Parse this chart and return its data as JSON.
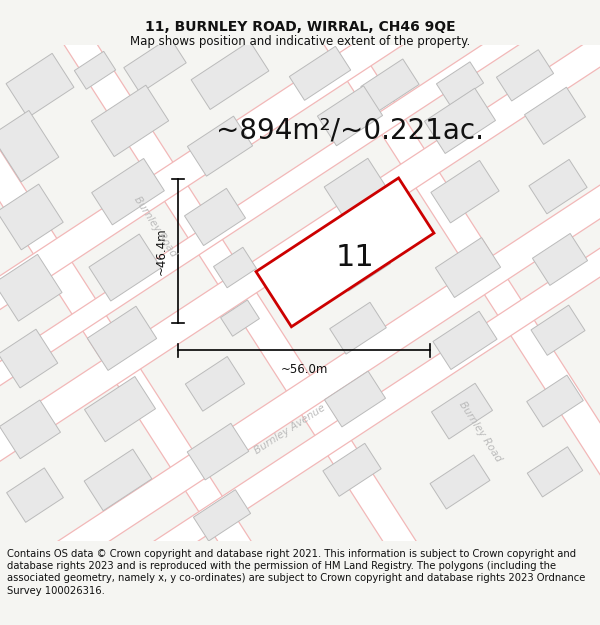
{
  "title_line1": "11, BURNLEY ROAD, WIRRAL, CH46 9QE",
  "title_line2": "Map shows position and indicative extent of the property.",
  "area_text": "~894m²/~0.221ac.",
  "plot_number": "11",
  "dim_width": "~56.0m",
  "dim_height": "~46.4m",
  "road_label1": "Burnley Road",
  "road_label2": "Burnley Avenue",
  "road_label3": "Burnley Road",
  "footer_text": "Contains OS data © Crown copyright and database right 2021. This information is subject to Crown copyright and database rights 2023 and is reproduced with the permission of HM Land Registry. The polygons (including the associated geometry, namely x, y co-ordinates) are subject to Crown copyright and database rights 2023 Ordnance Survey 100026316.",
  "bg_color": "#f5f5f2",
  "map_bg": "#ffffff",
  "block_fill": "#e8e8e8",
  "block_edge": "#bbbbbb",
  "road_line_color": "#f2b8b8",
  "highlight_edge": "#cc0000",
  "highlight_fill": "#ffffff",
  "dim_color": "#000000",
  "footer_bg": "#ffffff",
  "title_fontsize": 10,
  "subtitle_fontsize": 8.5,
  "area_fontsize": 20,
  "plot_num_fontsize": 22,
  "footer_fontsize": 7.2,
  "road_label_color": "#bbbbbb",
  "road_label_fontsize": 7.5
}
